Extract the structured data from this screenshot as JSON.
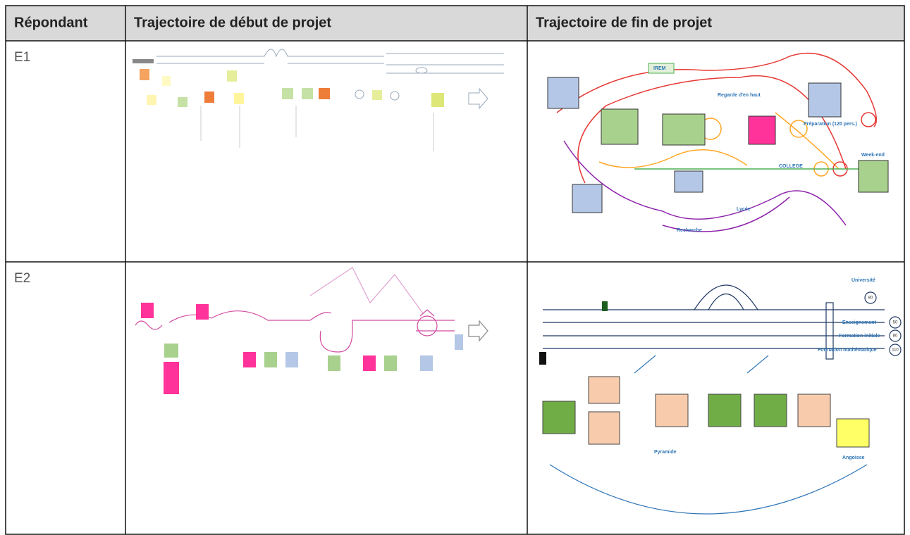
{
  "table": {
    "header": [
      "Répondant",
      "Trajectoire de début de projet",
      "Trajectoire de fin de projet"
    ],
    "rows": [
      [
        "E1"
      ],
      [
        "E2"
      ]
    ]
  },
  "images": {
    "e1_end": {
      "labels": [
        "IREM",
        "Regarde d'en haut",
        "COLLEGE",
        "Week-end",
        "Recherche",
        "Lycée",
        "Préparation (120 pers.)"
      ]
    },
    "e2_end": {
      "labels": [
        "Université",
        "Enseignement",
        "Formation initiale",
        "Formation mathématique",
        "Pyramide",
        "Angoisse"
      ],
      "numbers": [
        80,
        50,
        80,
        110
      ]
    }
  }
}
